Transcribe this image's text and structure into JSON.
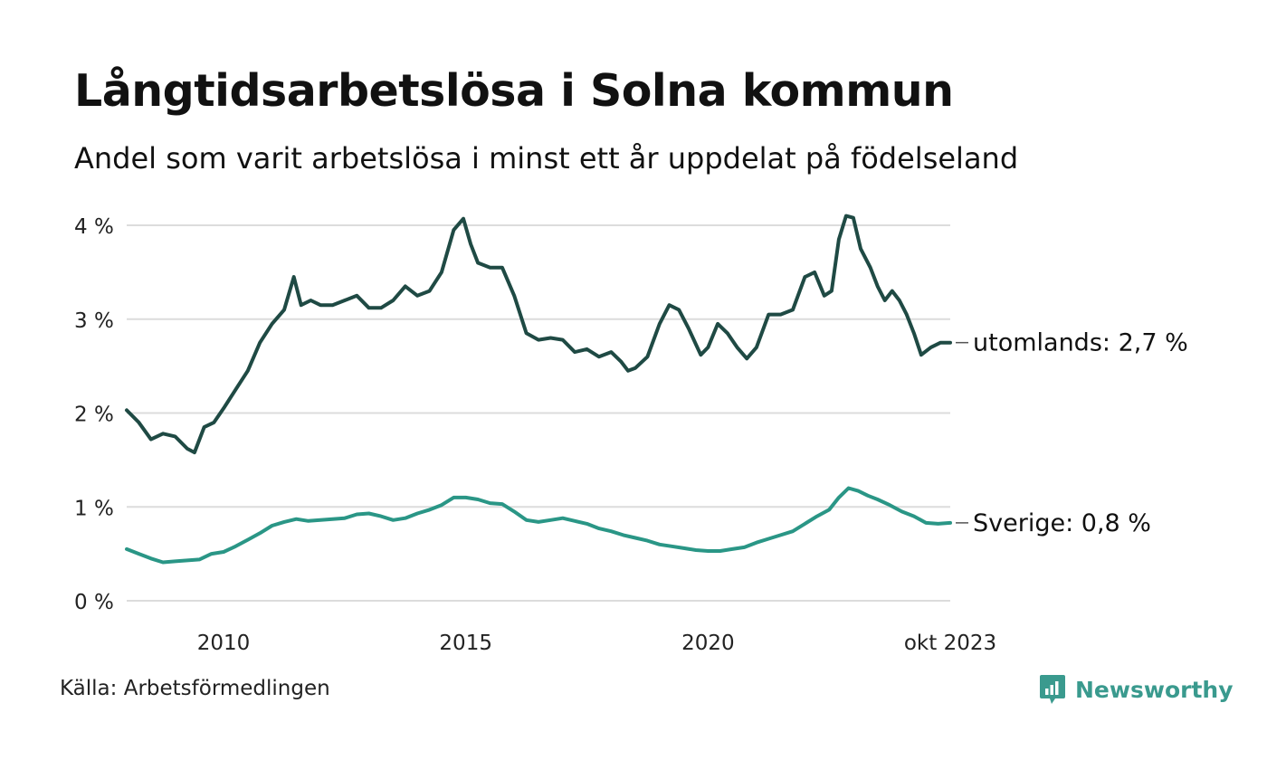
{
  "header": {
    "title": "Långtidsarbetslösa i Solna kommun",
    "subtitle": "Andel som varit arbetslösa i minst ett år uppdelat på födelseland"
  },
  "footer": {
    "source": "Källa: Arbetsförmedlingen",
    "brand": "Newsworthy",
    "brand_color": "#3a9a8e"
  },
  "chart_data": {
    "type": "line",
    "title": "Långtidsarbetslösa i Solna kommun",
    "subtitle": "Andel som varit arbetslösa i minst ett år uppdelat på födelseland",
    "x_start": 2008.0,
    "x_end": 2023.75,
    "ylim": [
      0,
      4
    ],
    "y_ticks": [
      {
        "value": 0,
        "label": "0 %"
      },
      {
        "value": 1,
        "label": "1 %"
      },
      {
        "value": 2,
        "label": "2 %"
      },
      {
        "value": 3,
        "label": "3 %"
      },
      {
        "value": 4,
        "label": "4 %"
      }
    ],
    "x_ticks": [
      {
        "value": 2010,
        "label": "2010"
      },
      {
        "value": 2015,
        "label": "2015"
      },
      {
        "value": 2020,
        "label": "2020"
      },
      {
        "value": 2023.75,
        "label": "okt 2023"
      }
    ],
    "grid": true,
    "series": [
      {
        "name": "utomlands",
        "end_label": "utomlands: 2,7 %",
        "color": "#1f4a44",
        "points": [
          [
            2008.0,
            2.03
          ],
          [
            2008.25,
            1.9
          ],
          [
            2008.5,
            1.72
          ],
          [
            2008.75,
            1.78
          ],
          [
            2009.0,
            1.75
          ],
          [
            2009.25,
            1.62
          ],
          [
            2009.4,
            1.58
          ],
          [
            2009.6,
            1.85
          ],
          [
            2009.8,
            1.9
          ],
          [
            2010.0,
            2.05
          ],
          [
            2010.25,
            2.25
          ],
          [
            2010.5,
            2.45
          ],
          [
            2010.75,
            2.75
          ],
          [
            2011.0,
            2.95
          ],
          [
            2011.25,
            3.1
          ],
          [
            2011.45,
            3.45
          ],
          [
            2011.6,
            3.15
          ],
          [
            2011.8,
            3.2
          ],
          [
            2012.0,
            3.15
          ],
          [
            2012.25,
            3.15
          ],
          [
            2012.5,
            3.2
          ],
          [
            2012.75,
            3.25
          ],
          [
            2013.0,
            3.12
          ],
          [
            2013.25,
            3.12
          ],
          [
            2013.5,
            3.2
          ],
          [
            2013.75,
            3.35
          ],
          [
            2014.0,
            3.25
          ],
          [
            2014.25,
            3.3
          ],
          [
            2014.5,
            3.5
          ],
          [
            2014.75,
            3.95
          ],
          [
            2014.95,
            4.07
          ],
          [
            2015.1,
            3.8
          ],
          [
            2015.25,
            3.6
          ],
          [
            2015.5,
            3.55
          ],
          [
            2015.75,
            3.55
          ],
          [
            2016.0,
            3.25
          ],
          [
            2016.25,
            2.85
          ],
          [
            2016.5,
            2.78
          ],
          [
            2016.75,
            2.8
          ],
          [
            2017.0,
            2.78
          ],
          [
            2017.25,
            2.65
          ],
          [
            2017.5,
            2.68
          ],
          [
            2017.75,
            2.6
          ],
          [
            2018.0,
            2.65
          ],
          [
            2018.2,
            2.55
          ],
          [
            2018.35,
            2.45
          ],
          [
            2018.5,
            2.48
          ],
          [
            2018.75,
            2.6
          ],
          [
            2019.0,
            2.95
          ],
          [
            2019.2,
            3.15
          ],
          [
            2019.4,
            3.1
          ],
          [
            2019.6,
            2.9
          ],
          [
            2019.85,
            2.62
          ],
          [
            2020.0,
            2.7
          ],
          [
            2020.2,
            2.95
          ],
          [
            2020.4,
            2.85
          ],
          [
            2020.6,
            2.7
          ],
          [
            2020.8,
            2.58
          ],
          [
            2021.0,
            2.7
          ],
          [
            2021.25,
            3.05
          ],
          [
            2021.5,
            3.05
          ],
          [
            2021.75,
            3.1
          ],
          [
            2022.0,
            3.45
          ],
          [
            2022.2,
            3.5
          ],
          [
            2022.4,
            3.25
          ],
          [
            2022.55,
            3.3
          ],
          [
            2022.7,
            3.85
          ],
          [
            2022.85,
            4.1
          ],
          [
            2023.0,
            4.08
          ],
          [
            2023.15,
            3.75
          ],
          [
            2023.35,
            3.55
          ],
          [
            2023.5,
            3.35
          ],
          [
            2023.65,
            3.2
          ],
          [
            2023.8,
            3.3
          ],
          [
            2023.95,
            3.2
          ],
          [
            2024.1,
            3.05
          ],
          [
            2024.25,
            2.85
          ],
          [
            2024.4,
            2.62
          ],
          [
            2024.6,
            2.7
          ],
          [
            2024.8,
            2.75
          ],
          [
            2025.0,
            2.75
          ]
        ]
      },
      {
        "name": "Sverige",
        "end_label": "Sverige: 0,8 %",
        "color": "#2a9686",
        "points": [
          [
            2008.0,
            0.55
          ],
          [
            2008.25,
            0.5
          ],
          [
            2008.5,
            0.45
          ],
          [
            2008.75,
            0.41
          ],
          [
            2009.0,
            0.42
          ],
          [
            2009.25,
            0.43
          ],
          [
            2009.5,
            0.44
          ],
          [
            2009.75,
            0.5
          ],
          [
            2010.0,
            0.52
          ],
          [
            2010.25,
            0.58
          ],
          [
            2010.5,
            0.65
          ],
          [
            2010.75,
            0.72
          ],
          [
            2011.0,
            0.8
          ],
          [
            2011.25,
            0.84
          ],
          [
            2011.5,
            0.87
          ],
          [
            2011.75,
            0.85
          ],
          [
            2012.0,
            0.86
          ],
          [
            2012.25,
            0.87
          ],
          [
            2012.5,
            0.88
          ],
          [
            2012.75,
            0.92
          ],
          [
            2013.0,
            0.93
          ],
          [
            2013.25,
            0.9
          ],
          [
            2013.5,
            0.86
          ],
          [
            2013.75,
            0.88
          ],
          [
            2014.0,
            0.93
          ],
          [
            2014.25,
            0.97
          ],
          [
            2014.5,
            1.02
          ],
          [
            2014.75,
            1.1
          ],
          [
            2015.0,
            1.1
          ],
          [
            2015.25,
            1.08
          ],
          [
            2015.5,
            1.04
          ],
          [
            2015.75,
            1.03
          ],
          [
            2016.0,
            0.95
          ],
          [
            2016.25,
            0.86
          ],
          [
            2016.5,
            0.84
          ],
          [
            2016.75,
            0.86
          ],
          [
            2017.0,
            0.88
          ],
          [
            2017.25,
            0.85
          ],
          [
            2017.5,
            0.82
          ],
          [
            2017.75,
            0.77
          ],
          [
            2018.0,
            0.74
          ],
          [
            2018.25,
            0.7
          ],
          [
            2018.5,
            0.67
          ],
          [
            2018.75,
            0.64
          ],
          [
            2019.0,
            0.6
          ],
          [
            2019.25,
            0.58
          ],
          [
            2019.5,
            0.56
          ],
          [
            2019.75,
            0.54
          ],
          [
            2020.0,
            0.53
          ],
          [
            2020.25,
            0.53
          ],
          [
            2020.5,
            0.55
          ],
          [
            2020.75,
            0.57
          ],
          [
            2021.0,
            0.62
          ],
          [
            2021.25,
            0.66
          ],
          [
            2021.5,
            0.7
          ],
          [
            2021.75,
            0.74
          ],
          [
            2022.0,
            0.82
          ],
          [
            2022.25,
            0.9
          ],
          [
            2022.5,
            0.97
          ],
          [
            2022.7,
            1.1
          ],
          [
            2022.9,
            1.2
          ],
          [
            2023.1,
            1.17
          ],
          [
            2023.3,
            1.12
          ],
          [
            2023.5,
            1.08
          ],
          [
            2023.75,
            1.02
          ],
          [
            2024.0,
            0.95
          ],
          [
            2024.25,
            0.9
          ],
          [
            2024.5,
            0.83
          ],
          [
            2024.75,
            0.82
          ],
          [
            2025.0,
            0.83
          ]
        ]
      }
    ]
  }
}
